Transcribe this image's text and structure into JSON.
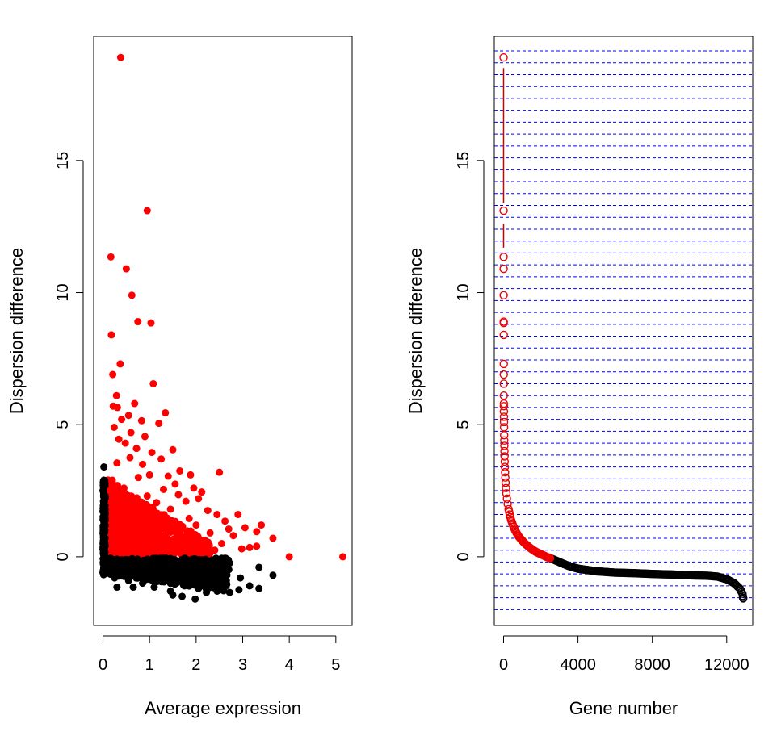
{
  "chart_data": [
    {
      "type": "scatter",
      "xlabel": "Average expression",
      "ylabel": "Dispersion difference",
      "xlim": [
        -0.2,
        5.35
      ],
      "ylim": [
        -2.6,
        19.7
      ],
      "xticks": [
        0,
        1,
        2,
        3,
        4,
        5
      ],
      "yticks": [
        0,
        5,
        10,
        15
      ],
      "grid": false,
      "series": [
        {
          "color": "#ff0000",
          "points": [
            [
              0.38,
              18.9
            ],
            [
              0.95,
              13.1
            ],
            [
              0.17,
              11.35
            ],
            [
              0.5,
              10.9
            ],
            [
              0.62,
              9.9
            ],
            [
              0.18,
              8.4
            ],
            [
              0.75,
              8.9
            ],
            [
              1.03,
              8.85
            ],
            [
              0.37,
              7.3
            ],
            [
              0.21,
              6.9
            ],
            [
              1.08,
              6.55
            ],
            [
              0.29,
              6.1
            ],
            [
              0.22,
              5.7
            ],
            [
              0.31,
              5.65
            ],
            [
              0.68,
              5.8
            ],
            [
              1.34,
              5.45
            ],
            [
              0.4,
              5.2
            ],
            [
              0.55,
              5.35
            ],
            [
              0.83,
              5.15
            ],
            [
              1.2,
              5.05
            ],
            [
              0.24,
              4.9
            ],
            [
              0.6,
              4.7
            ],
            [
              0.9,
              4.55
            ],
            [
              0.34,
              4.45
            ],
            [
              0.48,
              4.3
            ],
            [
              1.5,
              4.05
            ],
            [
              0.72,
              4.1
            ],
            [
              1.05,
              3.95
            ],
            [
              0.58,
              3.75
            ],
            [
              1.25,
              3.7
            ],
            [
              0.85,
              3.5
            ],
            [
              0.3,
              3.55
            ],
            [
              1.65,
              3.25
            ],
            [
              2.5,
              3.2
            ],
            [
              1.4,
              3.05
            ],
            [
              1.0,
              3.1
            ],
            [
              1.88,
              3.1
            ],
            [
              0.76,
              3.0
            ],
            [
              1.95,
              2.6
            ],
            [
              1.55,
              2.75
            ],
            [
              2.12,
              2.45
            ],
            [
              1.3,
              2.55
            ],
            [
              1.62,
              2.35
            ],
            [
              1.78,
              2.1
            ],
            [
              2.05,
              2.2
            ],
            [
              2.25,
              1.75
            ],
            [
              2.45,
              1.6
            ],
            [
              2.9,
              1.6
            ],
            [
              2.62,
              1.35
            ],
            [
              3.05,
              1.1
            ],
            [
              3.4,
              1.2
            ],
            [
              3.3,
              0.95
            ],
            [
              3.65,
              0.7
            ],
            [
              2.7,
              1.05
            ],
            [
              2.8,
              0.8
            ],
            [
              2.55,
              0.5
            ],
            [
              2.98,
              0.3
            ],
            [
              3.15,
              0.35
            ],
            [
              3.3,
              0.4
            ],
            [
              2.3,
              0.9
            ],
            [
              2.0,
              1.2
            ],
            [
              1.85,
              1.45
            ],
            [
              1.45,
              1.8
            ],
            [
              1.15,
              2.05
            ],
            [
              0.95,
              2.3
            ],
            [
              0.45,
              2.6
            ],
            [
              0.2,
              2.9
            ],
            [
              0.15,
              2.5
            ],
            [
              0.65,
              1.9
            ],
            [
              0.78,
              1.45
            ],
            [
              0.55,
              1.1
            ],
            [
              0.88,
              0.9
            ],
            [
              1.2,
              1.3
            ],
            [
              1.62,
              1.0
            ],
            [
              2.1,
              0.6
            ],
            [
              2.4,
              0.25
            ],
            [
              0.35,
              0.75
            ],
            [
              0.25,
              1.6
            ],
            [
              0.7,
              0.4
            ],
            [
              1.35,
              0.45
            ],
            [
              4.0,
              0.0
            ],
            [
              5.15,
              0.0
            ]
          ]
        },
        {
          "color": "#000000",
          "points": [
            [
              0.02,
              3.4
            ],
            [
              0.02,
              2.9
            ],
            [
              0.0,
              2.5
            ],
            [
              0.03,
              2.1
            ],
            [
              0.01,
              1.7
            ],
            [
              0.02,
              1.3
            ],
            [
              0.0,
              0.9
            ],
            [
              0.03,
              0.5
            ],
            [
              0.01,
              0.1
            ],
            [
              0.02,
              -0.3
            ],
            [
              0.0,
              -0.6
            ],
            [
              0.1,
              -0.4
            ],
            [
              0.25,
              -0.8
            ],
            [
              0.4,
              -0.5
            ],
            [
              0.55,
              -0.9
            ],
            [
              0.7,
              -0.3
            ],
            [
              0.85,
              -1.0
            ],
            [
              1.0,
              -0.6
            ],
            [
              1.15,
              -0.2
            ],
            [
              1.3,
              -0.9
            ],
            [
              1.45,
              -1.3
            ],
            [
              1.6,
              -0.7
            ],
            [
              1.75,
              -1.1
            ],
            [
              1.9,
              -0.5
            ],
            [
              2.05,
              -1.2
            ],
            [
              2.2,
              -0.8
            ],
            [
              2.35,
              -1.0
            ],
            [
              2.5,
              -0.6
            ],
            [
              1.5,
              -1.45
            ],
            [
              1.7,
              -1.5
            ],
            [
              1.98,
              -1.6
            ],
            [
              2.22,
              -1.35
            ],
            [
              2.65,
              -0.9
            ],
            [
              2.95,
              -0.8
            ],
            [
              3.15,
              -1.1
            ],
            [
              2.72,
              -1.35
            ],
            [
              2.92,
              -1.25
            ],
            [
              3.35,
              -0.4
            ],
            [
              3.35,
              -1.2
            ],
            [
              3.65,
              -0.7
            ],
            [
              0.3,
              -1.15
            ],
            [
              0.65,
              -1.15
            ],
            [
              1.1,
              -1.15
            ],
            [
              2.45,
              -1.3
            ],
            [
              2.6,
              -0.15
            ]
          ]
        }
      ]
    },
    {
      "type": "scatter",
      "xlabel": "Gene number",
      "ylabel": "Dispersion difference",
      "xlim": [
        -500,
        13400
      ],
      "ylim": [
        -2.6,
        19.7
      ],
      "xticks": [
        0,
        4000,
        8000,
        12000
      ],
      "yticks": [
        0,
        5,
        10,
        15
      ],
      "hlines_from": -2.0,
      "hlines_to": 19.2,
      "hlines_step": 0.45,
      "hlines_color": "#0000ff",
      "marker": "open-circle",
      "red_vline_segments": [
        [
          13.4,
          18.5
        ],
        [
          11.7,
          12.6
        ]
      ],
      "red_points": [
        [
          1,
          18.9
        ],
        [
          2,
          13.1
        ],
        [
          3,
          11.35
        ],
        [
          4,
          10.9
        ],
        [
          5,
          9.9
        ],
        [
          6,
          8.9
        ],
        [
          7,
          8.85
        ],
        [
          8,
          8.4
        ],
        [
          9,
          7.3
        ],
        [
          10,
          6.9
        ],
        [
          11,
          6.55
        ],
        [
          12,
          6.1
        ],
        [
          14,
          5.8
        ],
        [
          16,
          5.7
        ],
        [
          18,
          5.5
        ],
        [
          20,
          5.3
        ],
        [
          23,
          5.1
        ],
        [
          26,
          4.9
        ],
        [
          30,
          4.6
        ],
        [
          35,
          4.4
        ],
        [
          40,
          4.2
        ],
        [
          45,
          4.0
        ],
        [
          52,
          3.8
        ],
        [
          60,
          3.6
        ],
        [
          70,
          3.4
        ],
        [
          80,
          3.2
        ],
        [
          95,
          3.0
        ],
        [
          110,
          2.8
        ],
        [
          130,
          2.6
        ],
        [
          150,
          2.4
        ],
        [
          180,
          2.2
        ],
        [
          220,
          2.0
        ],
        [
          270,
          1.8
        ],
        [
          330,
          1.6
        ],
        [
          400,
          1.4
        ],
        [
          500,
          1.2
        ],
        [
          620,
          1.0
        ],
        [
          780,
          0.8
        ],
        [
          950,
          0.65
        ],
        [
          1150,
          0.5
        ],
        [
          1400,
          0.35
        ],
        [
          1700,
          0.2
        ],
        [
          2000,
          0.1
        ],
        [
          2300,
          0.0
        ],
        [
          2500,
          -0.05
        ]
      ],
      "black_curve": [
        [
          2500,
          -0.05
        ],
        [
          3000,
          -0.2
        ],
        [
          3500,
          -0.35
        ],
        [
          4000,
          -0.45
        ],
        [
          4500,
          -0.5
        ],
        [
          5000,
          -0.55
        ],
        [
          6000,
          -0.6
        ],
        [
          7000,
          -0.62
        ],
        [
          8000,
          -0.65
        ],
        [
          9000,
          -0.67
        ],
        [
          10000,
          -0.7
        ],
        [
          11000,
          -0.72
        ],
        [
          11500,
          -0.75
        ],
        [
          12000,
          -0.85
        ],
        [
          12400,
          -1.0
        ],
        [
          12700,
          -1.2
        ],
        [
          12850,
          -1.4
        ],
        [
          12880,
          -1.55
        ],
        [
          12900,
          -1.6
        ]
      ]
    }
  ]
}
